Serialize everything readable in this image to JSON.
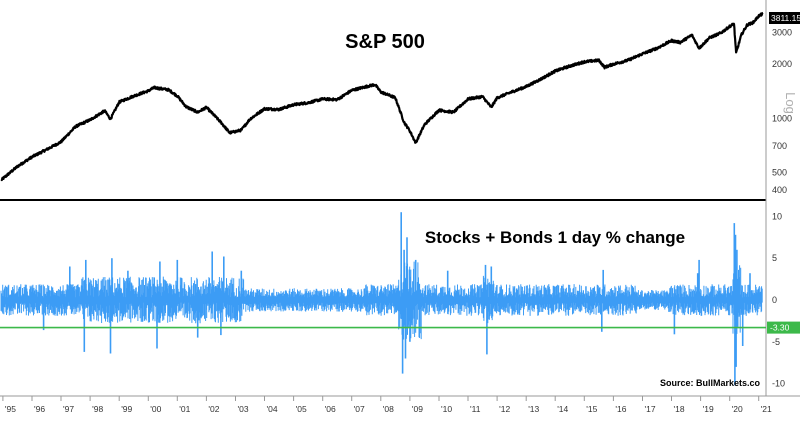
{
  "chart_data": [
    {
      "type": "line",
      "title": "S&P 500",
      "scale": "log",
      "scale_label": "Log",
      "yticks": [
        400,
        500,
        700,
        1000,
        2000,
        3000
      ],
      "ytick_labels": [
        "400",
        "500",
        "700",
        "1000",
        "2000",
        "3000"
      ],
      "ylim": [
        370,
        4100
      ],
      "last_value_label": "3811.15",
      "x": [
        1994.95,
        1995.5,
        1996.0,
        1996.5,
        1997.0,
        1997.5,
        1998.0,
        1998.5,
        1998.7,
        1999.0,
        1999.5,
        2000.0,
        2000.2,
        2000.7,
        2001.0,
        2001.3,
        2001.7,
        2002.0,
        2002.5,
        2002.8,
        2003.2,
        2003.5,
        2004.0,
        2004.5,
        2005.0,
        2005.5,
        2006.0,
        2006.5,
        2007.0,
        2007.5,
        2007.8,
        2008.0,
        2008.5,
        2008.8,
        2009.0,
        2009.2,
        2009.5,
        2010.0,
        2010.5,
        2011.0,
        2011.5,
        2011.8,
        2012.0,
        2012.5,
        2013.0,
        2013.5,
        2014.0,
        2014.5,
        2015.0,
        2015.5,
        2015.7,
        2016.0,
        2016.5,
        2017.0,
        2017.5,
        2018.0,
        2018.3,
        2018.7,
        2018.95,
        2019.3,
        2019.7,
        2020.0,
        2020.15,
        2020.22,
        2020.4,
        2020.6,
        2020.8,
        2021.0,
        2021.15
      ],
      "y": [
        455,
        540,
        610,
        670,
        740,
        900,
        980,
        1100,
        990,
        1230,
        1330,
        1420,
        1480,
        1440,
        1330,
        1160,
        1080,
        1150,
        950,
        830,
        860,
        990,
        1130,
        1120,
        1190,
        1220,
        1280,
        1270,
        1430,
        1500,
        1540,
        1400,
        1300,
        950,
        850,
        730,
        920,
        1110,
        1080,
        1280,
        1320,
        1150,
        1300,
        1400,
        1500,
        1650,
        1830,
        1950,
        2060,
        2100,
        1920,
        2000,
        2100,
        2280,
        2450,
        2700,
        2640,
        2900,
        2450,
        2800,
        2980,
        3240,
        3350,
        2300,
        2900,
        3300,
        3400,
        3700,
        3811
      ]
    },
    {
      "type": "line",
      "title": "Stocks + Bonds 1 day % change",
      "yticks": [
        -10,
        -5,
        0,
        5,
        10
      ],
      "ytick_labels": [
        "-10",
        "-5",
        "0",
        "5",
        "10"
      ],
      "ylim": [
        -11,
        11
      ],
      "threshold_label": "-3.30",
      "threshold_value": -3.3,
      "series_color": "#3c9cf5",
      "threshold_color": "#3cb94a",
      "spikes": [
        {
          "x": 1996.4,
          "y": -3.6
        },
        {
          "x": 1997.3,
          "y": 4.0
        },
        {
          "x": 1997.8,
          "y": -6.2
        },
        {
          "x": 1997.85,
          "y": 4.8
        },
        {
          "x": 1998.7,
          "y": -6.4
        },
        {
          "x": 1998.75,
          "y": 5.0
        },
        {
          "x": 1999.3,
          "y": 3.5
        },
        {
          "x": 2000.3,
          "y": -5.8
        },
        {
          "x": 2000.4,
          "y": 4.6
        },
        {
          "x": 2001.0,
          "y": 4.8
        },
        {
          "x": 2001.7,
          "y": -4.5
        },
        {
          "x": 2002.2,
          "y": 5.8
        },
        {
          "x": 2002.5,
          "y": -4.2
        },
        {
          "x": 2002.6,
          "y": 5.2
        },
        {
          "x": 2003.2,
          "y": 3.5
        },
        {
          "x": 2008.7,
          "y": 10.5
        },
        {
          "x": 2008.75,
          "y": -8.8
        },
        {
          "x": 2008.8,
          "y": 6.0
        },
        {
          "x": 2008.85,
          "y": -7.0
        },
        {
          "x": 2008.9,
          "y": 7.5
        },
        {
          "x": 2009.0,
          "y": -5.0
        },
        {
          "x": 2009.2,
          "y": 4.8
        },
        {
          "x": 2010.3,
          "y": 3.5
        },
        {
          "x": 2011.6,
          "y": 4.2
        },
        {
          "x": 2011.65,
          "y": -6.5
        },
        {
          "x": 2011.8,
          "y": 4.0
        },
        {
          "x": 2015.6,
          "y": -3.8
        },
        {
          "x": 2015.65,
          "y": 3.6
        },
        {
          "x": 2018.1,
          "y": -4.1
        },
        {
          "x": 2018.9,
          "y": 3.2
        },
        {
          "x": 2018.95,
          "y": 4.8
        },
        {
          "x": 2020.16,
          "y": 9.2
        },
        {
          "x": 2020.18,
          "y": -10.2
        },
        {
          "x": 2020.2,
          "y": 7.8
        },
        {
          "x": 2020.22,
          "y": -8.0
        },
        {
          "x": 2020.25,
          "y": 6.0
        },
        {
          "x": 2020.45,
          "y": -5.5
        },
        {
          "x": 2020.7,
          "y": 3.2
        }
      ]
    }
  ],
  "x_axis": {
    "range": [
      1994.9,
      2021.25
    ],
    "ticks": [
      1995,
      1996,
      1997,
      1998,
      1999,
      2000,
      2001,
      2002,
      2003,
      2004,
      2005,
      2006,
      2007,
      2008,
      2009,
      2010,
      2011,
      2012,
      2013,
      2014,
      2015,
      2016,
      2017,
      2018,
      2019,
      2020,
      2021
    ],
    "tick_labels": [
      "'95",
      "'96",
      "'97",
      "'98",
      "'99",
      "'00",
      "'01",
      "'02",
      "'03",
      "'04",
      "'05",
      "'06",
      "'07",
      "'08",
      "'09",
      "'10",
      "'11",
      "'12",
      "'13",
      "'14",
      "'15",
      "'16",
      "'17",
      "'18",
      "'19",
      "'20",
      "'21"
    ]
  },
  "source": "Source: BullMarkets.co"
}
